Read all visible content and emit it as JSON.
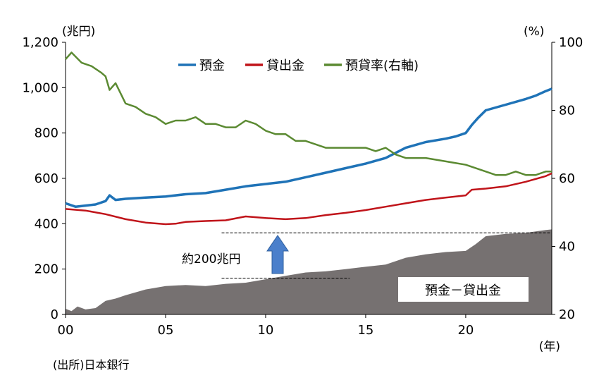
{
  "chart_data": {
    "type": "line",
    "source": "(出所)日本銀行",
    "left_axis": {
      "unit": "(兆円)",
      "ylim": [
        0,
        1200
      ],
      "ticks": [
        "0",
        "200",
        "400",
        "600",
        "800",
        "1,000",
        "1,200"
      ]
    },
    "right_axis": {
      "unit": "(%)",
      "ylim": [
        20,
        100
      ],
      "ticks": [
        "20",
        "40",
        "60",
        "80",
        "100"
      ]
    },
    "x_axis": {
      "unit": "(年)",
      "xlim": [
        2000,
        2024.3
      ],
      "ticks": [
        "00",
        "05",
        "10",
        "15",
        "20"
      ]
    },
    "legend_position": "top-center",
    "series": [
      {
        "name": "預金",
        "color": "#1f73b7",
        "axis": "left",
        "type": "line",
        "x": [
          2000,
          2000.5,
          2001,
          2001.5,
          2002,
          2002.2,
          2002.5,
          2003,
          2004,
          2005,
          2006,
          2007,
          2008,
          2009,
          2010,
          2011,
          2012,
          2013,
          2014,
          2015,
          2016,
          2017,
          2018,
          2019,
          2019.5,
          2020,
          2020.3,
          2020.6,
          2021,
          2022,
          2023,
          2023.5,
          2024,
          2024.3
        ],
        "values": [
          490,
          475,
          480,
          485,
          500,
          525,
          505,
          510,
          515,
          520,
          530,
          535,
          550,
          565,
          575,
          585,
          605,
          625,
          645,
          665,
          690,
          735,
          760,
          775,
          785,
          800,
          835,
          865,
          900,
          925,
          950,
          965,
          985,
          995
        ]
      },
      {
        "name": "貸出金",
        "color": "#c0141a",
        "axis": "left",
        "type": "line",
        "x": [
          2000,
          2001,
          2002,
          2003,
          2004,
          2005,
          2005.5,
          2006,
          2007,
          2008,
          2009,
          2010,
          2011,
          2012,
          2013,
          2014,
          2015,
          2016,
          2017,
          2018,
          2019,
          2020,
          2020.3,
          2021,
          2022,
          2023,
          2024,
          2024.3
        ],
        "values": [
          465,
          458,
          442,
          420,
          405,
          398,
          400,
          408,
          412,
          415,
          432,
          425,
          420,
          425,
          438,
          448,
          460,
          475,
          490,
          505,
          515,
          525,
          550,
          555,
          565,
          585,
          610,
          622
        ]
      },
      {
        "name": "預貸率(右軸)",
        "color": "#5b8a32",
        "axis": "right",
        "type": "line",
        "x": [
          2000,
          2000.3,
          2000.8,
          2001.3,
          2001.8,
          2002,
          2002.2,
          2002.5,
          2003,
          2003.5,
          2004,
          2004.5,
          2005,
          2005.5,
          2006,
          2006.5,
          2007,
          2007.5,
          2008,
          2008.5,
          2009,
          2009.5,
          2010,
          2010.5,
          2011,
          2011.5,
          2012,
          2013,
          2014,
          2015,
          2015.5,
          2016,
          2016.5,
          2017,
          2017.5,
          2018,
          2019,
          2020,
          2021,
          2021.5,
          2022,
          2022.5,
          2023,
          2023.5,
          2024,
          2024.3
        ],
        "values": [
          95,
          97,
          94,
          93,
          91,
          90,
          86,
          88,
          82,
          81,
          79,
          78,
          76,
          77,
          77,
          78,
          76,
          76,
          75,
          75,
          77,
          76,
          74,
          73,
          73,
          71,
          71,
          69,
          69,
          69,
          68,
          69,
          67,
          66,
          66,
          66,
          65,
          64,
          62,
          61,
          61,
          62,
          61,
          61,
          62,
          62
        ]
      },
      {
        "name": "預金－貸出金",
        "color": "#767171",
        "axis": "left",
        "type": "area",
        "x": [
          2000,
          2000.3,
          2000.6,
          2001,
          2001.5,
          2002,
          2002.5,
          2003,
          2004,
          2005,
          2006,
          2007,
          2008,
          2009,
          2010,
          2011,
          2012,
          2013,
          2014,
          2015,
          2016,
          2017,
          2018,
          2019,
          2020,
          2020.5,
          2021,
          2022,
          2023,
          2024,
          2024.3
        ],
        "values": [
          25,
          15,
          35,
          22,
          28,
          60,
          70,
          85,
          110,
          125,
          130,
          125,
          135,
          140,
          155,
          170,
          185,
          190,
          200,
          210,
          220,
          250,
          265,
          275,
          280,
          310,
          345,
          355,
          360,
          372,
          375
        ]
      }
    ],
    "annotations": {
      "bracket_label": "約200兆円",
      "bracket_from": 160,
      "bracket_to": 360
    }
  }
}
